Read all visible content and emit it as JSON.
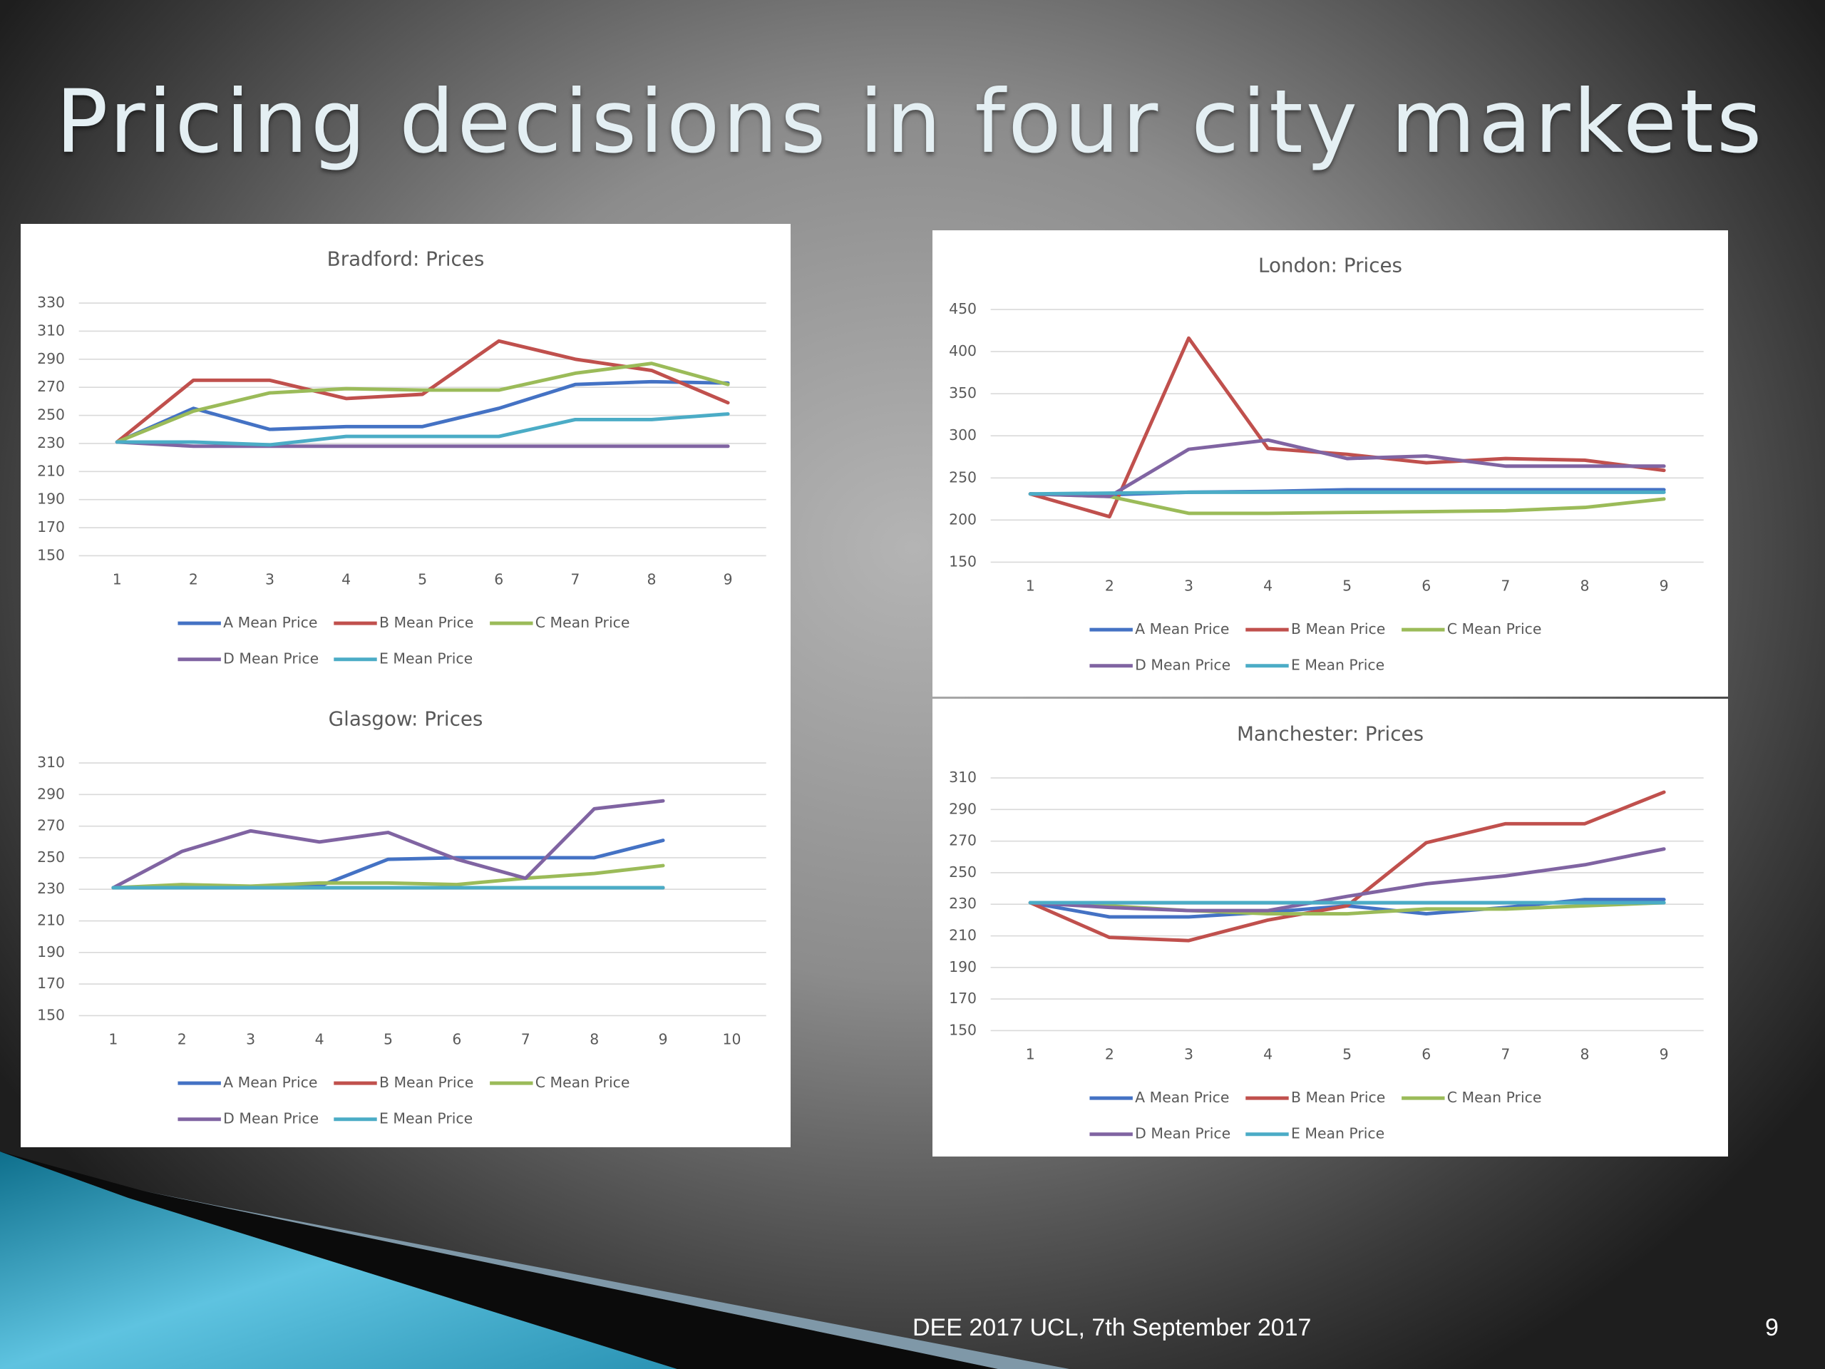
{
  "title": "Pricing decisions in four city markets",
  "footer": "DEE 2017 UCL, 7th September 2017",
  "page_number": "9",
  "chart_data": [
    {
      "type": "line",
      "title": "Bradford: Prices",
      "categories": [
        "1",
        "2",
        "3",
        "4",
        "5",
        "6",
        "7",
        "8",
        "9"
      ],
      "ylim": [
        150,
        330
      ],
      "yticks": [
        150,
        170,
        190,
        210,
        230,
        250,
        270,
        290,
        310,
        330
      ],
      "grid": true,
      "series": [
        {
          "name": "A Mean Price",
          "color": "#4472c4",
          "values": [
            231,
            255,
            240,
            242,
            242,
            255,
            272,
            274,
            273
          ]
        },
        {
          "name": "B Mean Price",
          "color": "#c0504d",
          "values": [
            231,
            275,
            275,
            262,
            265,
            303,
            290,
            282,
            259
          ]
        },
        {
          "name": "C Mean Price",
          "color": "#9bbb59",
          "values": [
            231,
            253,
            266,
            269,
            268,
            268,
            280,
            287,
            272
          ]
        },
        {
          "name": "D Mean Price",
          "color": "#8064a2",
          "values": [
            231,
            228,
            228,
            228,
            228,
            228,
            228,
            228,
            228
          ]
        },
        {
          "name": "E Mean Price",
          "color": "#4bacc6",
          "values": [
            231,
            231,
            229,
            235,
            235,
            235,
            247,
            247,
            251
          ]
        }
      ]
    },
    {
      "type": "line",
      "title": "London: Prices",
      "categories": [
        "1",
        "2",
        "3",
        "4",
        "5",
        "6",
        "7",
        "8",
        "9"
      ],
      "ylim": [
        150,
        450
      ],
      "yticks": [
        150,
        200,
        250,
        300,
        350,
        400,
        450
      ],
      "grid": true,
      "series": [
        {
          "name": "A Mean Price",
          "color": "#4472c4",
          "values": [
            231,
            230,
            233,
            234,
            236,
            236,
            236,
            236,
            236
          ]
        },
        {
          "name": "B Mean Price",
          "color": "#c0504d",
          "values": [
            231,
            204,
            416,
            285,
            278,
            268,
            273,
            271,
            259
          ]
        },
        {
          "name": "C Mean Price",
          "color": "#9bbb59",
          "values": [
            231,
            228,
            208,
            208,
            209,
            210,
            211,
            215,
            225
          ]
        },
        {
          "name": "D Mean Price",
          "color": "#8064a2",
          "values": [
            231,
            228,
            284,
            295,
            273,
            276,
            264,
            264,
            264
          ]
        },
        {
          "name": "E Mean Price",
          "color": "#4bacc6",
          "values": [
            231,
            232,
            233,
            233,
            233,
            233,
            233,
            233,
            233
          ]
        }
      ]
    },
    {
      "type": "line",
      "title": "Glasgow: Prices",
      "categories": [
        "1",
        "2",
        "3",
        "4",
        "5",
        "6",
        "7",
        "8",
        "9",
        "10"
      ],
      "ylim": [
        150,
        310
      ],
      "yticks": [
        150,
        170,
        190,
        210,
        230,
        250,
        270,
        290,
        310
      ],
      "grid": true,
      "series": [
        {
          "name": "A Mean Price",
          "color": "#4472c4",
          "values": [
            231,
            232,
            231,
            232,
            249,
            250,
            250,
            250,
            261,
            null
          ]
        },
        {
          "name": "B Mean Price",
          "color": "#c0504d",
          "values": [
            231,
            231,
            231,
            231,
            231,
            231,
            231,
            231,
            231,
            null
          ]
        },
        {
          "name": "C Mean Price",
          "color": "#9bbb59",
          "values": [
            231,
            233,
            232,
            234,
            234,
            233,
            237,
            240,
            245,
            null
          ]
        },
        {
          "name": "D Mean Price",
          "color": "#8064a2",
          "values": [
            231,
            254,
            267,
            260,
            266,
            249,
            237,
            281,
            286,
            null
          ]
        },
        {
          "name": "E Mean Price",
          "color": "#4bacc6",
          "values": [
            231,
            231,
            231,
            231,
            231,
            231,
            231,
            231,
            231,
            null
          ]
        }
      ]
    },
    {
      "type": "line",
      "title": "Manchester: Prices",
      "categories": [
        "1",
        "2",
        "3",
        "4",
        "5",
        "6",
        "7",
        "8",
        "9"
      ],
      "ylim": [
        150,
        310
      ],
      "yticks": [
        150,
        170,
        190,
        210,
        230,
        250,
        270,
        290,
        310
      ],
      "grid": true,
      "series": [
        {
          "name": "A Mean Price",
          "color": "#4472c4",
          "values": [
            231,
            222,
            222,
            225,
            229,
            224,
            228,
            233,
            233
          ]
        },
        {
          "name": "B Mean Price",
          "color": "#c0504d",
          "values": [
            231,
            209,
            207,
            220,
            229,
            269,
            281,
            281,
            301
          ]
        },
        {
          "name": "C Mean Price",
          "color": "#9bbb59",
          "values": [
            231,
            229,
            226,
            224,
            224,
            227,
            227,
            229,
            231
          ]
        },
        {
          "name": "D Mean Price",
          "color": "#8064a2",
          "values": [
            231,
            228,
            226,
            226,
            235,
            243,
            248,
            255,
            265
          ]
        },
        {
          "name": "E Mean Price",
          "color": "#4bacc6",
          "values": [
            231,
            231,
            231,
            231,
            231,
            231,
            231,
            231,
            231
          ]
        }
      ]
    }
  ]
}
